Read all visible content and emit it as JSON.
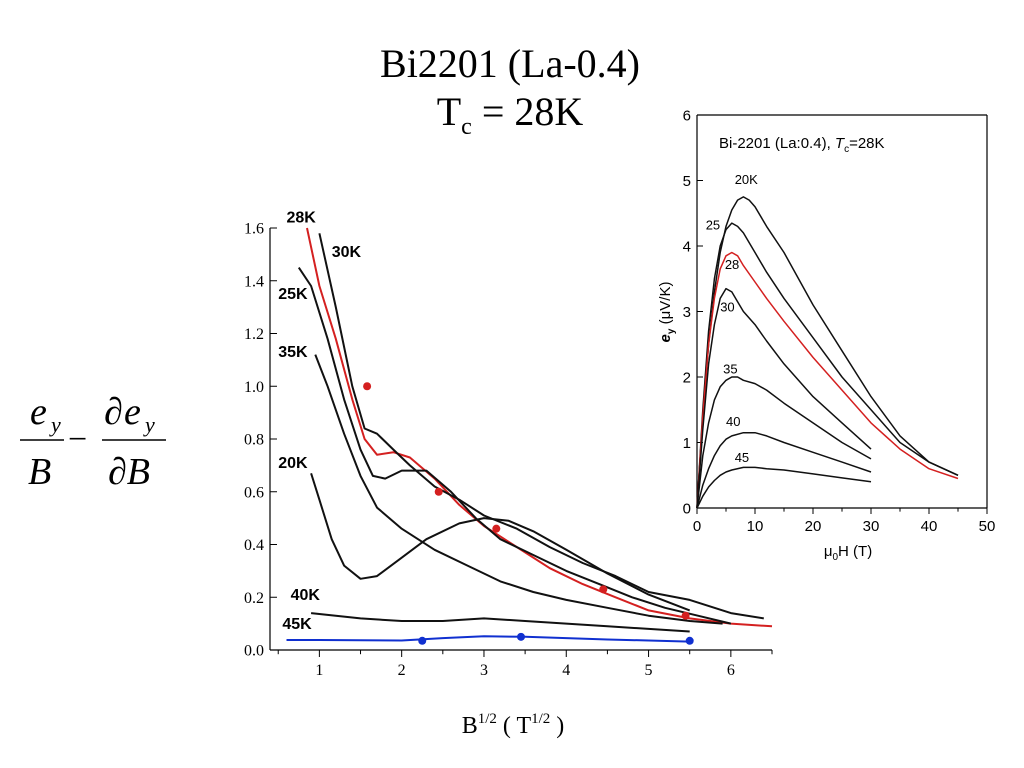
{
  "slide": {
    "title_line1": "Bi2201 (La-0.4)",
    "title_tc_symbol": "T",
    "title_tc_sub": "c",
    "title_tc_value": " = 28K",
    "formula": {
      "num1_base": "e",
      "num1_sub": "y",
      "den1": "B",
      "minus": "−",
      "num2_prefix": "∂",
      "num2_base": "e",
      "num2_sub": "y",
      "den2": "∂B"
    }
  },
  "chart_data": [
    {
      "type": "line",
      "xlabel_base": "B",
      "xlabel_sup": "1/2",
      "xlabel_unit_open": " ( T",
      "xlabel_unit_sup": "1/2",
      "xlabel_unit_close": " )",
      "ylabel": "",
      "xlim": [
        0.4,
        6.5
      ],
      "ylim": [
        0,
        1.6
      ],
      "xticks": [
        "1",
        "2",
        "3",
        "4",
        "5",
        "6"
      ],
      "xtick_values": [
        1,
        2,
        3,
        4,
        5,
        6
      ],
      "yticks": [
        "0.0",
        "0.2",
        "0.4",
        "0.6",
        "0.8",
        "1.0",
        "1.2",
        "1.4",
        "1.6"
      ],
      "ytick_values": [
        0,
        0.2,
        0.4,
        0.6,
        0.8,
        1.0,
        1.2,
        1.4,
        1.6
      ],
      "series": [
        {
          "name": "28K",
          "color": "#d42020",
          "x": [
            0.85,
            1.0,
            1.2,
            1.4,
            1.55,
            1.7,
            1.9,
            2.1,
            2.4,
            2.7,
            3.0,
            3.4,
            3.8,
            4.2,
            4.6,
            5.0,
            5.5,
            6.0,
            6.5
          ],
          "y": [
            1.6,
            1.38,
            1.18,
            0.95,
            0.8,
            0.74,
            0.75,
            0.73,
            0.65,
            0.55,
            0.47,
            0.39,
            0.31,
            0.25,
            0.2,
            0.15,
            0.12,
            0.1,
            0.09
          ]
        },
        {
          "name": "30K",
          "color": "#111111",
          "x": [
            1.0,
            1.2,
            1.4,
            1.55,
            1.7,
            1.9,
            2.1,
            2.4,
            2.7,
            3.0,
            3.4,
            3.8,
            4.2,
            4.6,
            5.0,
            5.5,
            6.0,
            6.4
          ],
          "y": [
            1.58,
            1.3,
            1.0,
            0.84,
            0.82,
            0.76,
            0.7,
            0.62,
            0.57,
            0.51,
            0.46,
            0.39,
            0.33,
            0.28,
            0.22,
            0.19,
            0.14,
            0.12
          ]
        },
        {
          "name": "25K",
          "color": "#111111",
          "x": [
            0.75,
            0.9,
            1.1,
            1.3,
            1.5,
            1.65,
            1.8,
            2.0,
            2.3,
            2.6,
            2.9,
            3.2,
            3.6,
            4.0,
            4.4,
            4.8,
            5.2,
            5.6,
            6.0
          ],
          "y": [
            1.45,
            1.38,
            1.18,
            0.95,
            0.76,
            0.66,
            0.65,
            0.68,
            0.68,
            0.6,
            0.5,
            0.42,
            0.36,
            0.3,
            0.25,
            0.2,
            0.16,
            0.13,
            0.1
          ]
        },
        {
          "name": "35K",
          "color": "#111111",
          "x": [
            0.95,
            1.1,
            1.3,
            1.5,
            1.7,
            2.0,
            2.4,
            2.8,
            3.2,
            3.6,
            4.0,
            4.5,
            5.0,
            5.5,
            5.9
          ],
          "y": [
            1.12,
            1.0,
            0.82,
            0.66,
            0.54,
            0.46,
            0.38,
            0.32,
            0.26,
            0.22,
            0.19,
            0.16,
            0.13,
            0.11,
            0.1
          ]
        },
        {
          "name": "20K",
          "color": "#111111",
          "x": [
            0.9,
            1.0,
            1.15,
            1.3,
            1.5,
            1.7,
            2.0,
            2.3,
            2.7,
            3.0,
            3.3,
            3.6,
            4.0,
            4.5,
            5.0,
            5.5
          ],
          "y": [
            0.67,
            0.57,
            0.42,
            0.32,
            0.27,
            0.28,
            0.35,
            0.42,
            0.48,
            0.5,
            0.49,
            0.45,
            0.38,
            0.29,
            0.21,
            0.15
          ]
        },
        {
          "name": "40K",
          "color": "#111111",
          "x": [
            0.9,
            1.2,
            1.5,
            2.0,
            2.5,
            3.0,
            3.5,
            4.0,
            4.5,
            5.0,
            5.5
          ],
          "y": [
            0.14,
            0.13,
            0.12,
            0.11,
            0.11,
            0.12,
            0.11,
            0.1,
            0.09,
            0.08,
            0.07
          ]
        },
        {
          "name": "45K",
          "color": "#1030d0",
          "x": [
            0.6,
            1.0,
            1.5,
            2.0,
            2.5,
            3.0,
            3.5,
            4.0,
            4.5,
            5.0,
            5.5
          ],
          "y": [
            0.038,
            0.038,
            0.037,
            0.036,
            0.045,
            0.052,
            0.05,
            0.045,
            0.04,
            0.036,
            0.032
          ]
        }
      ],
      "markers": [
        {
          "color": "#d42020",
          "x": [
            1.58,
            2.45,
            3.15,
            4.45,
            5.45
          ],
          "y": [
            1.0,
            0.6,
            0.46,
            0.23,
            0.13
          ]
        },
        {
          "color": "#1030d0",
          "x": [
            2.25,
            3.45,
            5.5
          ],
          "y": [
            0.035,
            0.05,
            0.035
          ]
        }
      ],
      "curve_labels": [
        {
          "text": "28K",
          "x": 0.6,
          "y": 1.62
        },
        {
          "text": "30K",
          "x": 1.15,
          "y": 1.49
        },
        {
          "text": "25K",
          "x": 0.5,
          "y": 1.33
        },
        {
          "text": "35K",
          "x": 0.5,
          "y": 1.11
        },
        {
          "text": "20K",
          "x": 0.5,
          "y": 0.69
        },
        {
          "text": "40K",
          "x": 0.65,
          "y": 0.19
        },
        {
          "text": "45K",
          "x": 0.55,
          "y": 0.08
        }
      ]
    },
    {
      "type": "line",
      "title_prefix": "Bi-2201 (La:0.4), ",
      "title_tc": "T",
      "title_tc_sub": "c",
      "title_suffix": "=28K",
      "xlabel_prefix": "μ",
      "xlabel_sub": "0",
      "xlabel_suffix": "H (T)",
      "ylabel_symbol": "e",
      "ylabel_sub": "y",
      "ylabel_unit": " (μV/K)",
      "xlim": [
        0,
        50
      ],
      "ylim": [
        0,
        6
      ],
      "xticks": [
        "0",
        "10",
        "20",
        "30",
        "40",
        "50"
      ],
      "xtick_values": [
        0,
        10,
        20,
        30,
        40,
        50
      ],
      "yticks": [
        "0",
        "1",
        "2",
        "3",
        "4",
        "5",
        "6"
      ],
      "ytick_values": [
        0,
        1,
        2,
        3,
        4,
        5,
        6
      ],
      "series": [
        {
          "name": "20K",
          "color": "#111111",
          "x": [
            0,
            1,
            2,
            3,
            4,
            5,
            6,
            7,
            8,
            9,
            10,
            12,
            15,
            20,
            25,
            30,
            35,
            40,
            45
          ],
          "y": [
            0,
            1.4,
            2.5,
            3.3,
            3.9,
            4.3,
            4.55,
            4.7,
            4.75,
            4.7,
            4.6,
            4.3,
            3.9,
            3.1,
            2.4,
            1.7,
            1.1,
            0.7,
            0.5
          ]
        },
        {
          "name": "25",
          "color": "#111111",
          "x": [
            0,
            1,
            2,
            3,
            4,
            5,
            6,
            7,
            8,
            10,
            12,
            15,
            20,
            25,
            30,
            35,
            40,
            45
          ],
          "y": [
            0,
            1.5,
            2.7,
            3.5,
            4.0,
            4.25,
            4.35,
            4.3,
            4.2,
            3.9,
            3.6,
            3.2,
            2.6,
            2.0,
            1.5,
            1.0,
            0.7,
            0.5
          ]
        },
        {
          "name": "28",
          "color": "#d42020",
          "x": [
            0,
            1,
            2,
            3,
            4,
            5,
            6,
            7,
            8,
            10,
            12,
            15,
            20,
            25,
            30,
            35,
            40,
            45
          ],
          "y": [
            0,
            1.4,
            2.5,
            3.2,
            3.65,
            3.85,
            3.9,
            3.85,
            3.7,
            3.45,
            3.2,
            2.85,
            2.3,
            1.8,
            1.3,
            0.9,
            0.6,
            0.45
          ]
        },
        {
          "name": "30",
          "color": "#111111",
          "x": [
            0,
            1,
            2,
            3,
            4,
            5,
            6,
            7,
            8,
            10,
            12,
            15,
            20,
            25,
            30
          ],
          "y": [
            0,
            1.2,
            2.2,
            2.8,
            3.2,
            3.35,
            3.3,
            3.15,
            3.0,
            2.8,
            2.55,
            2.2,
            1.7,
            1.3,
            0.9
          ]
        },
        {
          "name": "35",
          "color": "#111111",
          "x": [
            0,
            1,
            2,
            3,
            4,
            5,
            6,
            7,
            8,
            10,
            12,
            15,
            20,
            25,
            30
          ],
          "y": [
            0,
            0.8,
            1.3,
            1.65,
            1.85,
            1.95,
            2.0,
            2.0,
            1.95,
            1.9,
            1.8,
            1.6,
            1.3,
            1.0,
            0.75
          ]
        },
        {
          "name": "40",
          "color": "#111111",
          "x": [
            0,
            1,
            2,
            3,
            4,
            5,
            6,
            8,
            10,
            12,
            15,
            20,
            25,
            30
          ],
          "y": [
            0,
            0.35,
            0.6,
            0.8,
            0.95,
            1.05,
            1.1,
            1.15,
            1.15,
            1.1,
            1.0,
            0.85,
            0.7,
            0.55
          ]
        },
        {
          "name": "45",
          "color": "#111111",
          "x": [
            0,
            1,
            2,
            3,
            4,
            5,
            6,
            8,
            10,
            12,
            15,
            20,
            25,
            30
          ],
          "y": [
            0,
            0.18,
            0.32,
            0.42,
            0.5,
            0.55,
            0.58,
            0.62,
            0.62,
            0.6,
            0.58,
            0.52,
            0.46,
            0.4
          ]
        }
      ],
      "curve_labels": [
        {
          "text": "20K",
          "x": 6.5,
          "y": 4.95
        },
        {
          "text": "25",
          "x": 1.5,
          "y": 4.25
        },
        {
          "text": "28",
          "x": 4.8,
          "y": 3.65
        },
        {
          "text": "30",
          "x": 4.0,
          "y": 3.0
        },
        {
          "text": "35",
          "x": 4.5,
          "y": 2.05
        },
        {
          "text": "40",
          "x": 5.0,
          "y": 1.25
        },
        {
          "text": "45",
          "x": 6.5,
          "y": 0.7
        }
      ]
    }
  ]
}
